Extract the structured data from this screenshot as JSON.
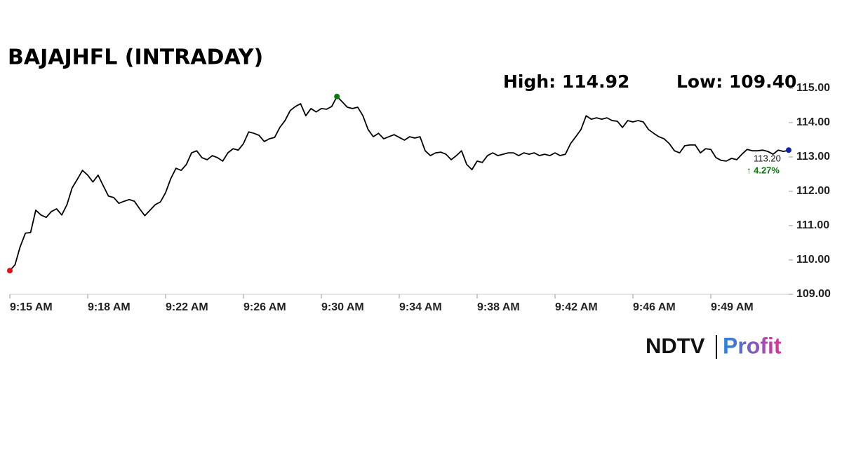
{
  "chart_data": {
    "type": "line",
    "title": "BAJAJHFL (INTRADAY)",
    "high_text": "High: 114.92",
    "low_text": "Low: 109.40",
    "last_label": "113.20",
    "change_label": "↑ 4.27%",
    "logo": [
      "NDTV",
      "Profit"
    ],
    "categories": [
      "9:15 AM",
      null,
      null,
      null,
      null,
      null,
      null,
      null,
      null,
      null,
      null,
      null,
      null,
      null,
      null,
      "9:18 AM",
      null,
      null,
      null,
      null,
      null,
      null,
      null,
      null,
      null,
      null,
      null,
      null,
      null,
      null,
      "9:22 AM",
      null,
      null,
      null,
      null,
      null,
      null,
      null,
      null,
      null,
      null,
      null,
      null,
      null,
      null,
      "9:26 AM",
      null,
      null,
      null,
      null,
      null,
      null,
      null,
      null,
      null,
      null,
      null,
      null,
      null,
      null,
      "9:30 AM",
      null,
      null,
      null,
      null,
      null,
      null,
      null,
      null,
      null,
      null,
      null,
      null,
      null,
      null,
      "9:34 AM",
      null,
      null,
      null,
      null,
      null,
      null,
      null,
      null,
      null,
      null,
      null,
      null,
      null,
      null,
      "9:38 AM",
      null,
      null,
      null,
      null,
      null,
      null,
      null,
      null,
      null,
      null,
      null,
      null,
      null,
      null,
      "9:42 AM",
      null,
      null,
      null,
      null,
      null,
      null,
      null,
      null,
      null,
      null,
      null,
      null,
      null,
      null,
      "9:46 AM",
      null,
      null,
      null,
      null,
      null,
      null,
      null,
      null,
      null,
      null,
      null,
      null,
      null,
      null,
      "9:49 AM",
      null,
      null,
      null,
      null,
      null,
      null,
      null,
      null,
      null,
      null,
      null,
      null,
      null,
      null,
      null
    ],
    "series": [
      {
        "color": "#000000",
        "values": [
          109.69,
          109.86,
          110.39,
          110.78,
          110.8,
          111.45,
          111.31,
          111.24,
          111.41,
          111.49,
          111.31,
          111.61,
          112.1,
          112.35,
          112.61,
          112.47,
          112.27,
          112.47,
          112.16,
          111.86,
          111.82,
          111.65,
          111.71,
          111.76,
          111.71,
          111.49,
          111.29,
          111.45,
          111.61,
          111.69,
          111.96,
          112.37,
          112.67,
          112.61,
          112.78,
          113.12,
          113.18,
          112.98,
          112.92,
          113.04,
          112.98,
          112.88,
          113.12,
          113.24,
          113.2,
          113.39,
          113.73,
          113.69,
          113.63,
          113.45,
          113.53,
          113.57,
          113.86,
          114.06,
          114.35,
          114.47,
          114.55,
          114.2,
          114.41,
          114.31,
          114.41,
          114.39,
          114.47,
          114.76,
          114.61,
          114.45,
          114.41,
          114.45,
          114.2,
          113.8,
          113.59,
          113.69,
          113.53,
          113.59,
          113.65,
          113.57,
          113.49,
          113.59,
          113.55,
          113.59,
          113.18,
          113.04,
          113.12,
          113.14,
          113.08,
          112.92,
          113.04,
          113.18,
          112.78,
          112.63,
          112.88,
          112.84,
          113.04,
          113.12,
          113.04,
          113.08,
          113.12,
          113.12,
          113.04,
          113.12,
          113.08,
          113.12,
          113.04,
          113.08,
          113.04,
          113.12,
          113.04,
          113.08,
          113.39,
          113.59,
          113.8,
          114.2,
          114.1,
          114.14,
          114.1,
          114.14,
          114.06,
          114.04,
          113.86,
          114.06,
          114.02,
          114.06,
          114.02,
          113.8,
          113.69,
          113.59,
          113.53,
          113.39,
          113.18,
          113.12,
          113.33,
          113.35,
          113.35,
          113.12,
          113.24,
          113.22,
          112.98,
          112.9,
          112.88,
          112.96,
          112.92,
          113.08,
          113.22,
          113.18,
          113.18,
          113.2,
          113.16,
          113.08,
          113.2,
          113.16,
          113.2
        ]
      }
    ],
    "marker_colors": {
      "start": "#e01010",
      "max": "#0a7a0a",
      "end": "#1020b0"
    },
    "change_color": "#0a7a0a",
    "ylim": [
      109,
      115
    ],
    "yticks": [
      {
        "value": 109,
        "label": "109.00"
      },
      {
        "value": 110,
        "label": "110.00"
      },
      {
        "value": 111,
        "label": "111.00"
      },
      {
        "value": 112,
        "label": "112.00"
      },
      {
        "value": 113,
        "label": "113.00"
      },
      {
        "value": 114,
        "label": "114.00"
      },
      {
        "value": 115,
        "label": "115.00"
      }
    ]
  }
}
